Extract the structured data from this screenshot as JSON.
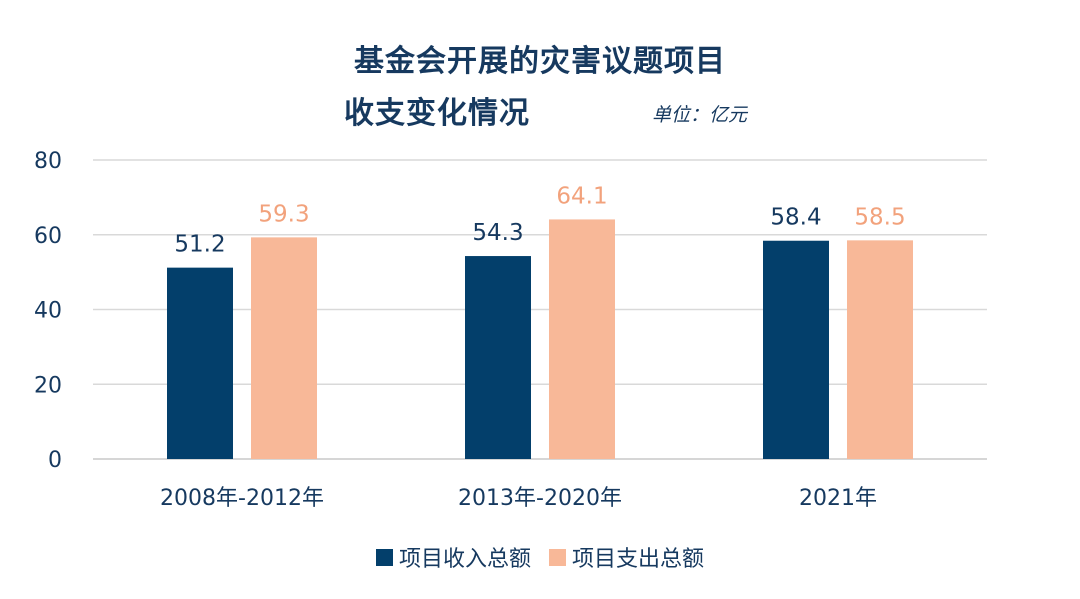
{
  "chart_data": {
    "type": "bar",
    "title_line1": "基金会开展的灾害议题项目",
    "title_line2": "收支变化情况",
    "unit": "单位：亿元",
    "categories": [
      "2008年-2012年",
      "2013年-2020年",
      "2021年"
    ],
    "series": [
      {
        "name": "项目收入总额",
        "values": [
          51.2,
          54.3,
          58.4
        ],
        "color": "#033f6b",
        "label_color": "#16395f"
      },
      {
        "name": "项目支出总额",
        "values": [
          59.3,
          64.1,
          58.5
        ],
        "color": "#f8b898",
        "label_color": "#f2a27c"
      }
    ],
    "y_ticks": [
      0,
      20,
      40,
      60,
      80
    ],
    "ylim": [
      0,
      80
    ],
    "grid": true,
    "legend_position": "bottom"
  }
}
